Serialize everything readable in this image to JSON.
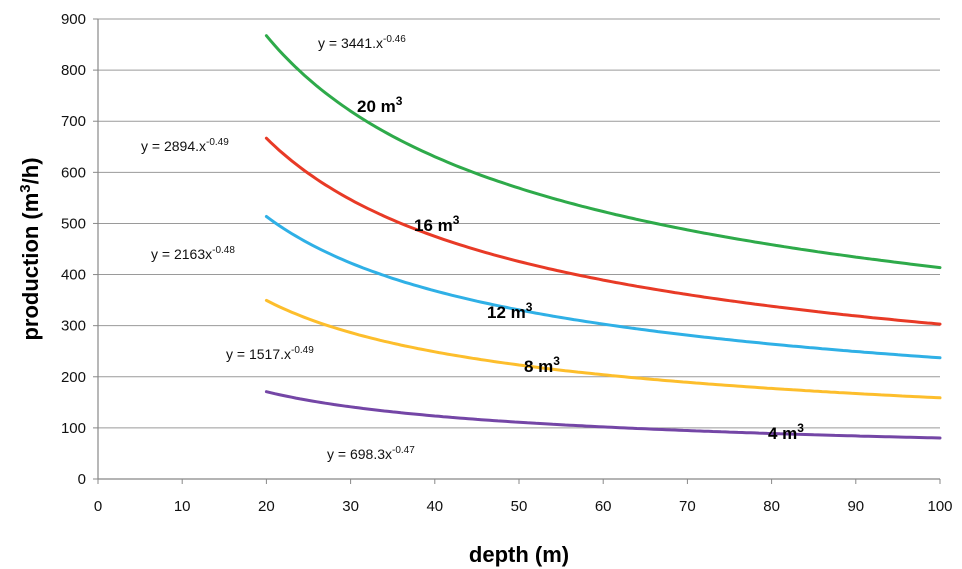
{
  "chart_data": {
    "type": "line",
    "xlabel": "depth (m)",
    "ylabel_main": "production (m",
    "ylabel_sup": "3",
    "ylabel_tail": "/h)",
    "xlim": [
      0,
      100
    ],
    "ylim": [
      0,
      900
    ],
    "xticks": [
      0,
      10,
      20,
      30,
      40,
      50,
      60,
      70,
      80,
      90,
      100
    ],
    "yticks": [
      0,
      100,
      200,
      300,
      400,
      500,
      600,
      700,
      800,
      900
    ],
    "grid": "horizontal",
    "series": [
      {
        "name": "20 m3",
        "label_main": "20 m",
        "label_sup": "3",
        "equation_main": "y = 3441.x",
        "equation_sup": "-0.46",
        "a": 3441,
        "b": -0.46,
        "x_range": [
          20,
          100
        ],
        "color": "#2eaa4a"
      },
      {
        "name": "16 m3",
        "label_main": "16 m",
        "label_sup": "3",
        "equation_main": "y = 2894.x",
        "equation_sup": "-0.49",
        "a": 2894,
        "b": -0.49,
        "x_range": [
          20,
          100
        ],
        "color": "#e83a26"
      },
      {
        "name": "12 m3",
        "label_main": "12 m",
        "label_sup": "3",
        "equation_main": "y = 2163x",
        "equation_sup": "-0.48",
        "a": 2163,
        "b": -0.48,
        "x_range": [
          20,
          100
        ],
        "color": "#2fb0e6"
      },
      {
        "name": "8 m3",
        "label_main": "8 m",
        "label_sup": "3",
        "equation_main": "y = 1517.x",
        "equation_sup": "-0.49",
        "a": 1517,
        "b": -0.49,
        "x_range": [
          20,
          100
        ],
        "color": "#fdbe2c"
      },
      {
        "name": "4 m3",
        "label_main": "4 m",
        "label_sup": "3",
        "equation_main": "y = 698.3x",
        "equation_sup": "-0.47",
        "a": 698.3,
        "b": -0.47,
        "x_range": [
          20,
          100
        ],
        "color": "#7446a6"
      }
    ]
  }
}
